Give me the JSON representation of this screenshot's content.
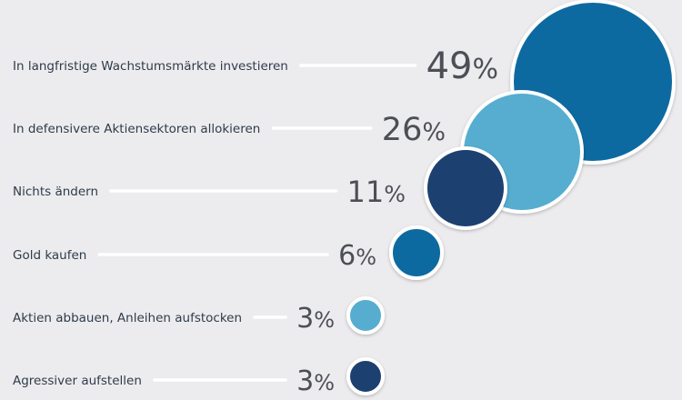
{
  "chart_data": {
    "type": "bubble",
    "title": "",
    "value_suffix": "%",
    "colors": {
      "background": "#ececee",
      "dark_blue": "#1f4070",
      "medium_blue": "#0f6aa1",
      "light_blue": "#57add0",
      "label_text": "#2f3b4a",
      "value_text": "#4d4f56",
      "leader_line": "#ffffff"
    },
    "rows": [
      {
        "label": "In langfristige Wachstumsmärkte investieren",
        "value": 49,
        "display": "49",
        "color": "#0f6aa1"
      },
      {
        "label": "In defensivere Aktiensektoren allokieren",
        "value": 26,
        "display": "26",
        "color": "#57add0"
      },
      {
        "label": "Nichts ändern",
        "value": 11,
        "display": "11",
        "color": "#1f4070"
      },
      {
        "label": "Gold kaufen",
        "value": 6,
        "display": "6",
        "color": "#0f6aa1"
      },
      {
        "label": "Aktien abbauen, Anleihen aufstocken",
        "value": 3,
        "display": "3",
        "color": "#57add0"
      },
      {
        "label": "Agressiver aufstellen",
        "value": 3,
        "display": "3",
        "color": "#1f4070"
      }
    ]
  }
}
